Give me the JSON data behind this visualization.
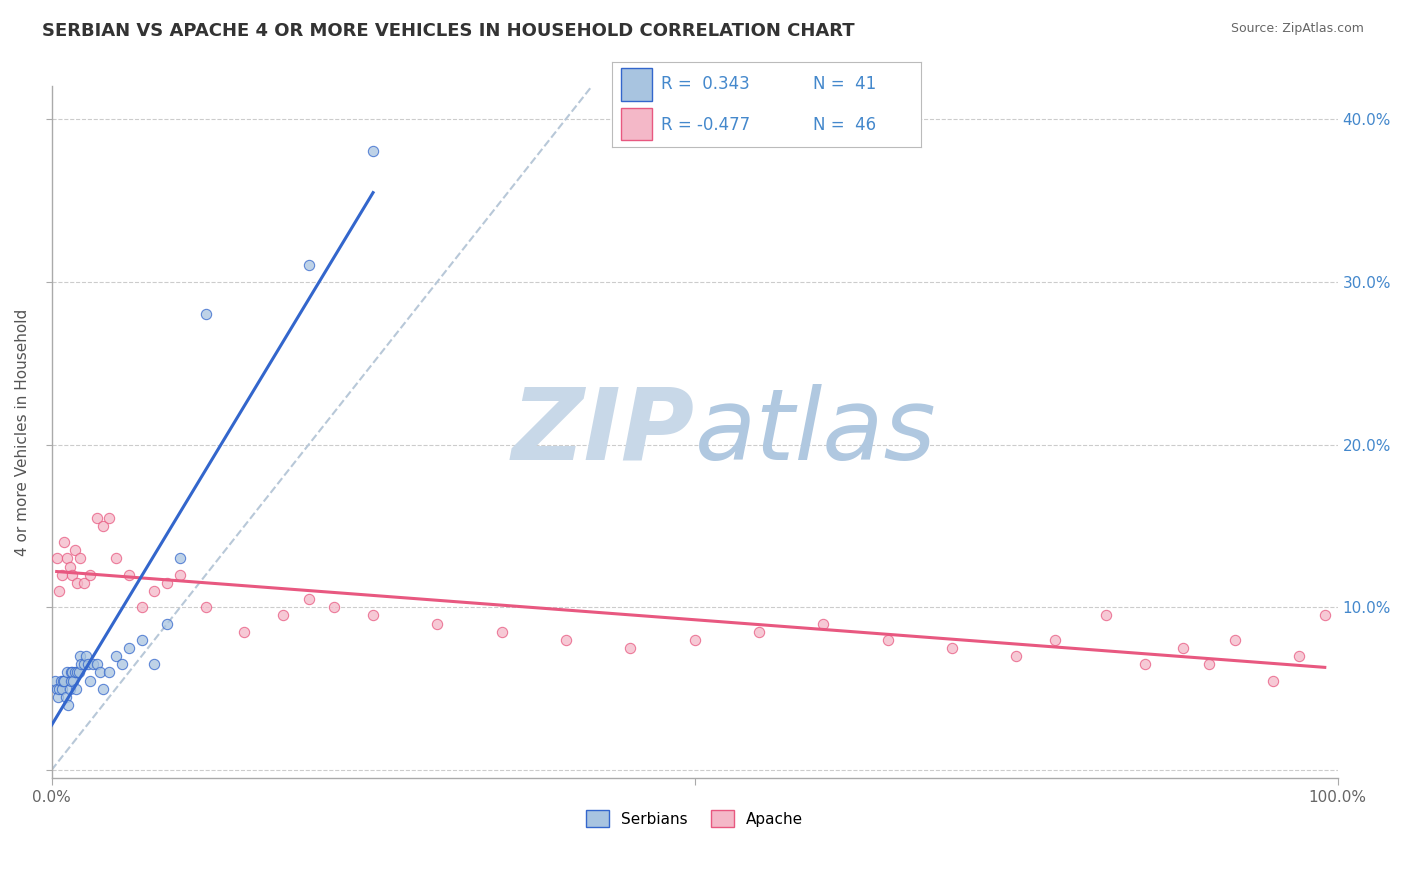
{
  "title": "SERBIAN VS APACHE 4 OR MORE VEHICLES IN HOUSEHOLD CORRELATION CHART",
  "source": "Source: ZipAtlas.com",
  "ylabel": "4 or more Vehicles in Household",
  "xlim": [
    0.0,
    1.0
  ],
  "ylim": [
    -0.005,
    0.42
  ],
  "ytick_positions": [
    0.0,
    0.1,
    0.2,
    0.3,
    0.4
  ],
  "ytick_labels_right": [
    "",
    "10.0%",
    "20.0%",
    "30.0%",
    "40.0%"
  ],
  "xtick_positions": [
    0.0,
    0.5,
    1.0
  ],
  "xtick_labels": [
    "0.0%",
    "",
    "100.0%"
  ],
  "legend_r1": "R =  0.343",
  "legend_n1": "N =  41",
  "legend_r2": "R = -0.477",
  "legend_n2": "N =  46",
  "legend_labels": [
    "Serbians",
    "Apache"
  ],
  "dot_color_serbian": "#a8c4e0",
  "dot_color_apache": "#f4b8c8",
  "line_color_serbian": "#3366cc",
  "line_color_apache": "#e85880",
  "diagonal_color": "#b8c8d8",
  "watermark_zip": "ZIP",
  "watermark_atlas": "atlas",
  "watermark_color_zip": "#c8d8e8",
  "watermark_color_atlas": "#b0c8e0",
  "title_color": "#333333",
  "source_color": "#666666",
  "ylabel_color": "#555555",
  "tick_color_right": "#4488cc",
  "tick_color_bottom": "#666666",
  "grid_color": "#cccccc",
  "background_color": "#ffffff",
  "serbian_x": [
    0.003,
    0.004,
    0.005,
    0.006,
    0.007,
    0.008,
    0.009,
    0.01,
    0.011,
    0.012,
    0.013,
    0.014,
    0.015,
    0.015,
    0.016,
    0.017,
    0.018,
    0.019,
    0.02,
    0.021,
    0.022,
    0.023,
    0.025,
    0.027,
    0.028,
    0.03,
    0.032,
    0.035,
    0.038,
    0.04,
    0.045,
    0.05,
    0.055,
    0.06,
    0.07,
    0.08,
    0.09,
    0.1,
    0.12,
    0.2,
    0.25
  ],
  "serbian_y": [
    0.055,
    0.05,
    0.045,
    0.05,
    0.055,
    0.05,
    0.055,
    0.055,
    0.045,
    0.06,
    0.04,
    0.05,
    0.055,
    0.06,
    0.06,
    0.055,
    0.06,
    0.05,
    0.06,
    0.06,
    0.07,
    0.065,
    0.065,
    0.07,
    0.065,
    0.055,
    0.065,
    0.065,
    0.06,
    0.05,
    0.06,
    0.07,
    0.065,
    0.075,
    0.08,
    0.065,
    0.09,
    0.13,
    0.28,
    0.31,
    0.38
  ],
  "apache_x": [
    0.004,
    0.006,
    0.008,
    0.01,
    0.012,
    0.014,
    0.016,
    0.018,
    0.02,
    0.022,
    0.025,
    0.03,
    0.035,
    0.04,
    0.045,
    0.05,
    0.06,
    0.07,
    0.08,
    0.09,
    0.1,
    0.12,
    0.15,
    0.18,
    0.2,
    0.22,
    0.25,
    0.3,
    0.35,
    0.4,
    0.45,
    0.5,
    0.55,
    0.6,
    0.65,
    0.7,
    0.75,
    0.78,
    0.82,
    0.85,
    0.88,
    0.9,
    0.92,
    0.95,
    0.97,
    0.99
  ],
  "apache_y": [
    0.13,
    0.11,
    0.12,
    0.14,
    0.13,
    0.125,
    0.12,
    0.135,
    0.115,
    0.13,
    0.115,
    0.12,
    0.155,
    0.15,
    0.155,
    0.13,
    0.12,
    0.1,
    0.11,
    0.115,
    0.12,
    0.1,
    0.085,
    0.095,
    0.105,
    0.1,
    0.095,
    0.09,
    0.085,
    0.08,
    0.075,
    0.08,
    0.085,
    0.09,
    0.08,
    0.075,
    0.07,
    0.08,
    0.095,
    0.065,
    0.075,
    0.065,
    0.08,
    0.055,
    0.07,
    0.095
  ],
  "dot_size": 55,
  "dot_alpha": 0.75,
  "title_fontsize": 13,
  "axis_label_fontsize": 11,
  "tick_fontsize": 11,
  "legend_fontsize": 12
}
